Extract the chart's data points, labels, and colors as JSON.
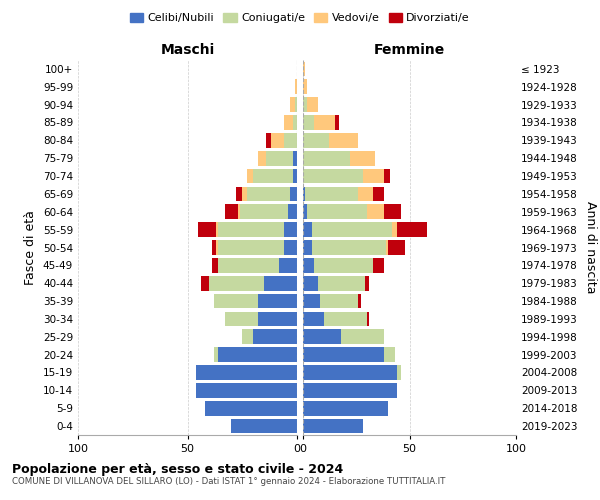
{
  "age_groups": [
    "0-4",
    "5-9",
    "10-14",
    "15-19",
    "20-24",
    "25-29",
    "30-34",
    "35-39",
    "40-44",
    "45-49",
    "50-54",
    "55-59",
    "60-64",
    "65-69",
    "70-74",
    "75-79",
    "80-84",
    "85-89",
    "90-94",
    "95-99",
    "100+"
  ],
  "birth_years": [
    "2019-2023",
    "2014-2018",
    "2009-2013",
    "2004-2008",
    "1999-2003",
    "1994-1998",
    "1989-1993",
    "1984-1988",
    "1979-1983",
    "1974-1978",
    "1969-1973",
    "1964-1968",
    "1959-1963",
    "1954-1958",
    "1949-1953",
    "1944-1948",
    "1939-1943",
    "1934-1938",
    "1929-1933",
    "1924-1928",
    "≤ 1923"
  ],
  "colors": {
    "celibi": "#4472c4",
    "coniugati": "#c5d9a0",
    "vedovi": "#ffc87c",
    "divorziati": "#c0000c"
  },
  "maschi": {
    "celibi": [
      30,
      42,
      46,
      46,
      36,
      20,
      18,
      18,
      15,
      8,
      6,
      6,
      4,
      3,
      2,
      2,
      0,
      0,
      0,
      0,
      0
    ],
    "coniugati": [
      0,
      0,
      0,
      0,
      2,
      5,
      15,
      20,
      25,
      28,
      30,
      30,
      22,
      20,
      18,
      12,
      6,
      2,
      1,
      0,
      0
    ],
    "vedovi": [
      0,
      0,
      0,
      0,
      0,
      0,
      0,
      0,
      0,
      0,
      1,
      1,
      1,
      2,
      3,
      4,
      6,
      4,
      2,
      1,
      0
    ],
    "divorziati": [
      0,
      0,
      0,
      0,
      0,
      0,
      0,
      0,
      4,
      3,
      2,
      8,
      6,
      3,
      0,
      0,
      2,
      0,
      0,
      0,
      0
    ]
  },
  "femmine": {
    "celibi": [
      28,
      40,
      44,
      44,
      38,
      18,
      10,
      8,
      7,
      5,
      4,
      4,
      2,
      1,
      0,
      0,
      0,
      0,
      0,
      0,
      0
    ],
    "coniugati": [
      0,
      0,
      0,
      2,
      5,
      20,
      20,
      18,
      22,
      28,
      35,
      38,
      28,
      25,
      28,
      22,
      12,
      5,
      2,
      0,
      0
    ],
    "vedovi": [
      0,
      0,
      0,
      0,
      0,
      0,
      0,
      0,
      0,
      0,
      1,
      2,
      8,
      7,
      10,
      12,
      14,
      10,
      5,
      2,
      1
    ],
    "divorziati": [
      0,
      0,
      0,
      0,
      0,
      0,
      1,
      1,
      2,
      5,
      8,
      14,
      8,
      5,
      3,
      0,
      0,
      2,
      0,
      0,
      0
    ]
  },
  "title": "Popolazione per età, sesso e stato civile - 2024",
  "subtitle": "COMUNE DI VILLANOVA DEL SILLARO (LO) - Dati ISTAT 1° gennaio 2024 - Elaborazione TUTTITALIA.IT",
  "xlabel_left": "Maschi",
  "xlabel_right": "Femmine",
  "ylabel_left": "Fasce di età",
  "ylabel_right": "Anni di nascita",
  "legend_labels": [
    "Celibi/Nubili",
    "Coniugati/e",
    "Vedovi/e",
    "Divorziati/e"
  ],
  "xlim": 100,
  "background_color": "#ffffff",
  "grid_color": "#cccccc"
}
